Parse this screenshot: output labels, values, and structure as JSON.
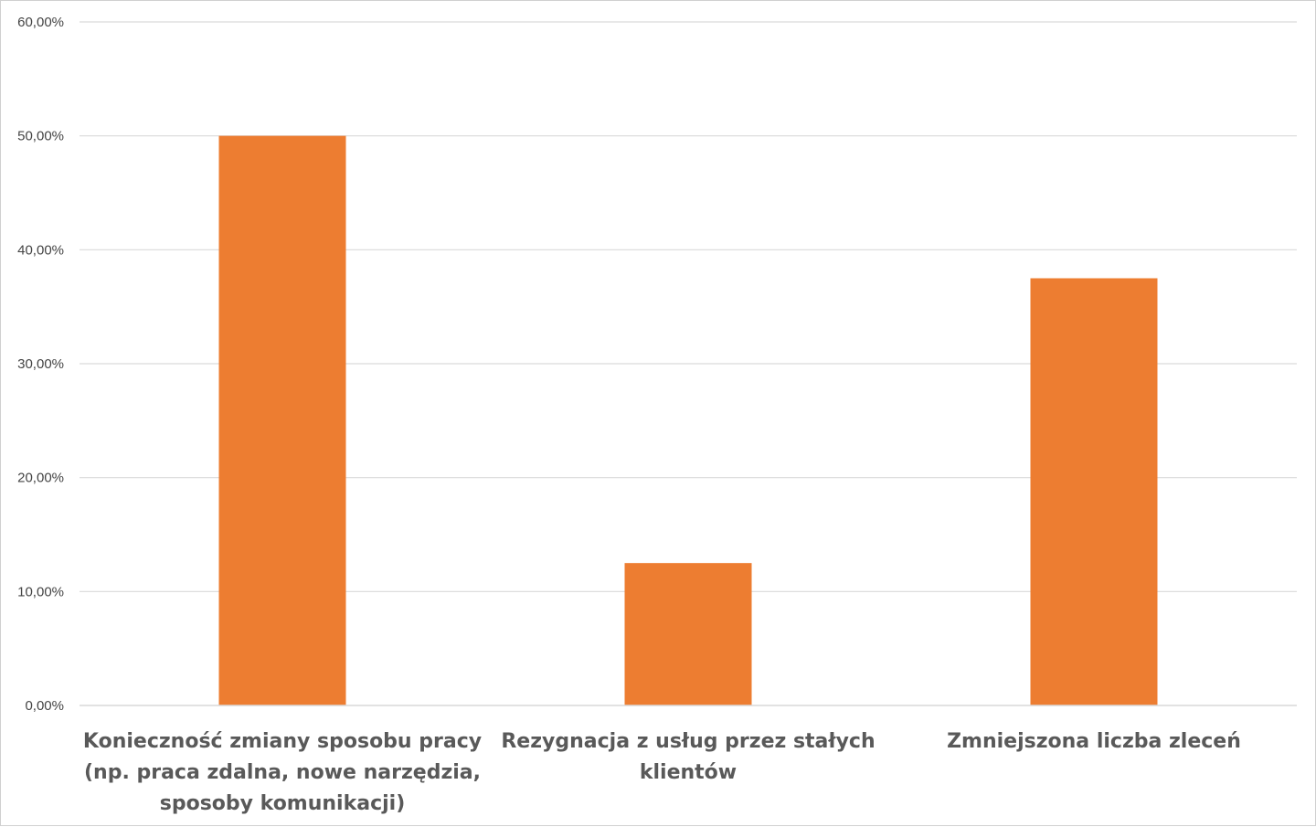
{
  "chart_data": {
    "type": "bar",
    "categories": [
      [
        "Konieczność zmiany sposobu pracy",
        "(np. praca zdalna, nowe narzędzia,",
        "sposoby komunikacji)"
      ],
      [
        "Rezygnacja z usług przez stałych",
        "klientów"
      ],
      [
        "Zmniejszona liczba zleceń"
      ]
    ],
    "values": [
      50.0,
      12.5,
      37.5
    ],
    "value_unit": "%",
    "ylim": [
      0,
      60
    ],
    "ytick_values": [
      0,
      10,
      20,
      30,
      40,
      50,
      60
    ],
    "yticks": [
      "0,00%",
      "10,00%",
      "20,00%",
      "30,00%",
      "40,00%",
      "50,00%",
      "60,00%"
    ],
    "bar_color": "#ED7D31",
    "grid": true,
    "legend": "none"
  }
}
